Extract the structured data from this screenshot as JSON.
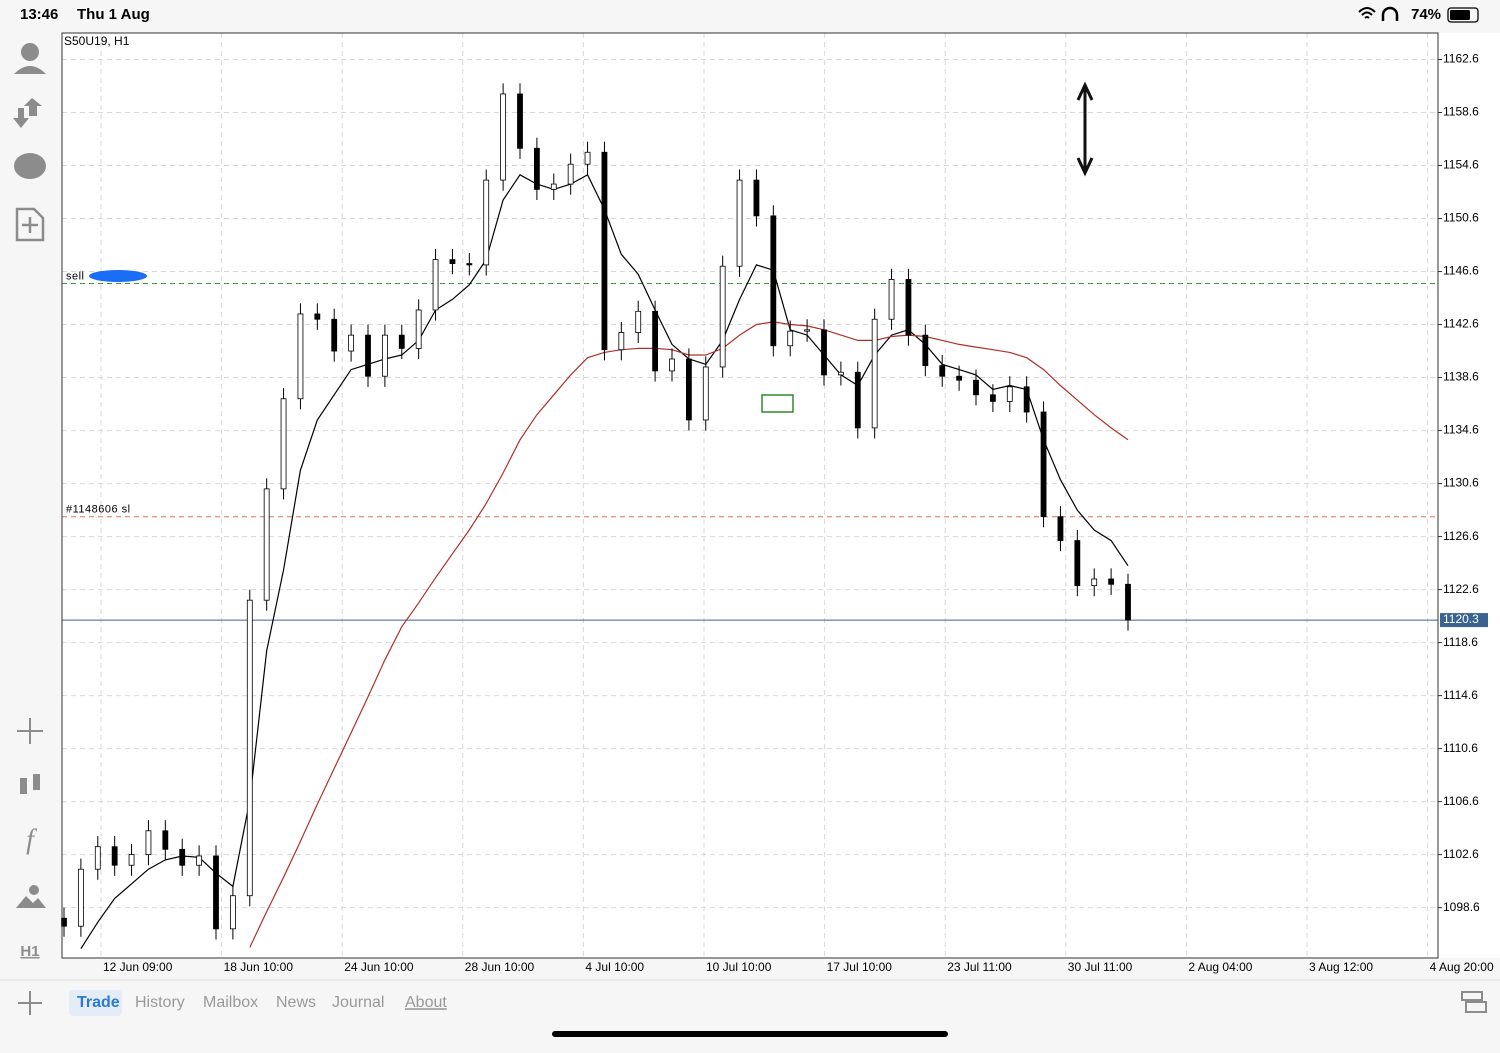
{
  "status_bar": {
    "time": "13:46",
    "date": "Thu 1 Aug",
    "battery": "74%"
  },
  "toolbar": {
    "timeframe": "H1"
  },
  "tabs": [
    "Trade",
    "History",
    "Mailbox",
    "News",
    "Journal",
    "About"
  ],
  "chart_data": {
    "type": "candlestick",
    "title": "S50U19, H1",
    "x_labels": [
      "12 Jun 09:00",
      "18 Jun 10:00",
      "24 Jun 10:00",
      "28 Jun 10:00",
      "4 Jul 10:00",
      "10 Jul 10:00",
      "17 Jul 10:00",
      "23 Jul 11:00",
      "30 Jul 11:00",
      "2 Aug 04:00",
      "3 Aug 12:00",
      "4 Aug 20:00"
    ],
    "open": [
      1097.8,
      1097.2,
      1101.5,
      1103.2,
      1101.8,
      1102.6,
      1104.4,
      1103.0,
      1101.8,
      1102.5,
      1097.0,
      1099.5,
      1121.8,
      1130.2,
      1137.0,
      1143.4,
      1143.0,
      1140.6,
      1141.8,
      1138.7,
      1141.8,
      1140.8,
      1143.7,
      1147.5,
      1147.2,
      1147.1,
      1153.5,
      1160.0,
      1155.9,
      1152.8,
      1153.2,
      1154.7,
      1155.6,
      1140.7,
      1142.0,
      1143.6,
      1139.1,
      1140.0,
      1135.4,
      1139.4,
      1147.0,
      1153.5,
      1150.8,
      1141.0,
      1142.1,
      1142.2,
      1138.8,
      1139.0,
      1134.8,
      1143.0,
      1146.0,
      1141.8,
      1139.5,
      1138.7,
      1138.4,
      1137.3,
      1136.8,
      1137.9,
      1136.0,
      1128.1,
      1126.3,
      1122.9,
      1123.4,
      1123.0
    ],
    "high": [
      1098.6,
      1102.3,
      1104.0,
      1104.0,
      1103.4,
      1105.2,
      1105.2,
      1103.8,
      1103.3,
      1103.3,
      1100.3,
      1122.6,
      1131.0,
      1137.8,
      1144.2,
      1144.2,
      1143.8,
      1142.6,
      1142.6,
      1142.6,
      1142.6,
      1144.5,
      1148.3,
      1148.3,
      1148.0,
      1154.3,
      1160.8,
      1160.8,
      1156.7,
      1154.0,
      1155.5,
      1156.4,
      1156.4,
      1142.8,
      1144.4,
      1144.4,
      1140.8,
      1140.8,
      1140.2,
      1147.8,
      1154.3,
      1154.3,
      1151.6,
      1142.9,
      1143.0,
      1143.0,
      1139.8,
      1139.8,
      1143.8,
      1146.8,
      1146.8,
      1142.6,
      1140.3,
      1139.5,
      1139.2,
      1138.1,
      1138.7,
      1138.7,
      1136.8,
      1128.9,
      1127.1,
      1124.2,
      1124.2,
      1123.8
    ],
    "low": [
      1096.4,
      1096.4,
      1100.7,
      1101.0,
      1101.0,
      1101.8,
      1102.2,
      1101.0,
      1101.0,
      1096.2,
      1096.2,
      1098.7,
      1121.0,
      1129.4,
      1136.2,
      1142.2,
      1139.8,
      1139.8,
      1137.9,
      1137.9,
      1140.0,
      1140.0,
      1142.9,
      1146.4,
      1146.3,
      1146.3,
      1152.7,
      1155.1,
      1152.0,
      1152.0,
      1152.4,
      1153.9,
      1139.9,
      1139.9,
      1141.2,
      1138.3,
      1138.3,
      1134.6,
      1134.6,
      1138.6,
      1146.2,
      1150.0,
      1140.2,
      1140.2,
      1141.3,
      1138.0,
      1138.0,
      1134.0,
      1134.0,
      1142.2,
      1141.0,
      1138.7,
      1137.9,
      1137.6,
      1136.5,
      1136.0,
      1136.0,
      1135.2,
      1127.3,
      1125.5,
      1122.1,
      1122.1,
      1122.2,
      1119.5
    ],
    "close": [
      1097.2,
      1101.5,
      1103.2,
      1101.8,
      1102.6,
      1104.4,
      1103.0,
      1101.8,
      1102.5,
      1097.0,
      1099.5,
      1121.8,
      1130.2,
      1137.0,
      1143.4,
      1143.0,
      1140.6,
      1141.8,
      1138.7,
      1141.8,
      1140.8,
      1143.7,
      1147.5,
      1147.2,
      1147.1,
      1153.5,
      1160.0,
      1155.9,
      1152.8,
      1153.2,
      1154.7,
      1155.6,
      1140.7,
      1142.0,
      1143.6,
      1139.1,
      1140.0,
      1135.4,
      1139.4,
      1147.0,
      1153.5,
      1150.8,
      1141.0,
      1142.1,
      1142.2,
      1138.8,
      1139.0,
      1134.8,
      1143.0,
      1146.0,
      1141.8,
      1139.5,
      1138.7,
      1138.4,
      1137.3,
      1136.8,
      1137.9,
      1136.0,
      1128.1,
      1126.3,
      1122.9,
      1123.4,
      1123.0,
      1120.3
    ],
    "lines": [
      {
        "color": "#000000",
        "values": [
          null,
          1095.5,
          1097.5,
          1099.3,
          1100.4,
          1101.5,
          1102.2,
          1102.5,
          1102.4,
          1101.2,
          1100.2,
          1106.7,
          1118.0,
          1124.1,
          1131.6,
          1135.4,
          1137.3,
          1139.2,
          1139.6,
          1140.0,
          1140.3,
          1141.4,
          1143.7,
          1144.5,
          1145.6,
          1147.5,
          1152.0,
          1153.9,
          1153.2,
          1152.8,
          1153.2,
          1153.9,
          1151.3,
          1147.9,
          1146.4,
          1143.7,
          1141.1,
          1140.0,
          1139.6,
          1141.4,
          1144.5,
          1147.1,
          1146.7,
          1142.2,
          1141.8,
          1140.3,
          1138.8,
          1138.0,
          1140.3,
          1141.8,
          1142.2,
          1141.1,
          1139.6,
          1139.2,
          1138.8,
          1137.7,
          1138.0,
          1137.7,
          1133.9,
          1130.9,
          1128.6,
          1127.1,
          1126.3,
          1124.4
        ]
      },
      {
        "color": "#b0302a",
        "values": [
          null,
          null,
          null,
          null,
          null,
          null,
          null,
          null,
          null,
          null,
          null,
          1095.6,
          1098.3,
          1100.9,
          1103.6,
          1106.4,
          1109.1,
          1111.8,
          1114.5,
          1117.3,
          1119.8,
          1121.6,
          1123.5,
          1125.3,
          1127.1,
          1129.1,
          1131.4,
          1133.9,
          1135.8,
          1137.3,
          1138.8,
          1140.1,
          1140.5,
          1140.7,
          1140.8,
          1140.8,
          1140.7,
          1140.3,
          1140.3,
          1140.8,
          1141.8,
          1142.6,
          1142.8,
          1142.6,
          1142.5,
          1142.2,
          1141.8,
          1141.4,
          1141.4,
          1141.7,
          1141.8,
          1141.7,
          1141.4,
          1141.1,
          1140.9,
          1140.7,
          1140.5,
          1140.1,
          1139.2,
          1138.0,
          1136.9,
          1135.8,
          1134.8,
          1133.9
        ]
      }
    ],
    "levels": [
      {
        "label": "sell",
        "value": 1145.7,
        "color": "#3a9a3a"
      },
      {
        "label": "#1148606 sl",
        "value": 1128.1,
        "color": "#e0705a"
      }
    ],
    "current_price": 1120.3,
    "current_price_color": "#3a6391",
    "ylim": [
      1094.8,
      1164.6
    ],
    "yticks": [
      1162.6,
      1158.6,
      1154.6,
      1150.6,
      1146.6,
      1142.6,
      1138.6,
      1134.6,
      1130.6,
      1126.6,
      1122.6,
      1118.6,
      1114.6,
      1110.6,
      1106.6,
      1102.6,
      1098.6
    ],
    "grid": true
  }
}
